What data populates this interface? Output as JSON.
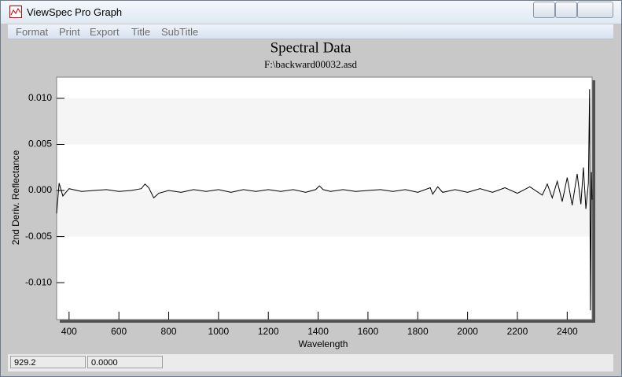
{
  "window": {
    "title": "ViewSpec Pro Graph",
    "menu": [
      "Format",
      "Print",
      "Export",
      "Title",
      "SubTitle"
    ],
    "status": [
      "929.2",
      "0.0000"
    ]
  },
  "chart_data": {
    "type": "line",
    "title": "Spectral Data",
    "subtitle": "F:\\backward00032.asd",
    "x_label": "Wavelength",
    "y_label": "2nd Deriv. Reflectance",
    "x": [
      350,
      360,
      375,
      400,
      450,
      500,
      550,
      600,
      650,
      690,
      705,
      720,
      740,
      760,
      800,
      850,
      900,
      950,
      1000,
      1050,
      1100,
      1150,
      1200,
      1250,
      1300,
      1350,
      1390,
      1405,
      1420,
      1450,
      1500,
      1550,
      1600,
      1650,
      1700,
      1750,
      1800,
      1850,
      1860,
      1880,
      1900,
      1950,
      2000,
      2050,
      2100,
      2150,
      2200,
      2250,
      2300,
      2320,
      2340,
      2360,
      2380,
      2400,
      2420,
      2440,
      2455,
      2465,
      2475,
      2485,
      2490,
      2493,
      2497,
      2500
    ],
    "series": [
      {
        "name": "backward00032",
        "color": "#000000",
        "values": [
          -0.0025,
          0.0008,
          -0.0006,
          0.0002,
          -0.0001,
          0.0,
          0.0001,
          -0.0001,
          0.0,
          0.0002,
          0.0007,
          0.0003,
          -0.0008,
          -0.0003,
          0.0,
          -0.0002,
          0.0001,
          -0.0001,
          0.0001,
          -0.0002,
          0.0001,
          -0.0001,
          0.0001,
          -0.0001,
          0.0001,
          -0.0002,
          0.0001,
          0.0005,
          0.0001,
          -0.0001,
          0.0001,
          -0.0001,
          0.0,
          0.0001,
          -0.0001,
          0.0001,
          -0.0002,
          0.0003,
          -0.0004,
          0.0004,
          -0.0002,
          0.0001,
          -0.0002,
          0.0002,
          -0.0002,
          0.0003,
          -0.0003,
          0.0004,
          -0.0005,
          0.0007,
          -0.0008,
          0.001,
          -0.0012,
          0.0014,
          -0.0016,
          0.0018,
          -0.0015,
          0.0025,
          -0.002,
          0.0008,
          0.011,
          -0.013,
          0.002,
          -0.001
        ]
      }
    ],
    "xlim": [
      350,
      2500
    ],
    "xticks": [
      400,
      600,
      800,
      1000,
      1200,
      1400,
      1600,
      1800,
      2000,
      2200,
      2400
    ],
    "ylim": [
      -0.014,
      0.0123
    ],
    "yticks": [
      {
        "value": 0.01,
        "label": "0.010"
      },
      {
        "value": 0.005,
        "label": "0.005"
      },
      {
        "value": 0,
        "label": "0.000"
      },
      {
        "value": -0.005,
        "label": "-0.005"
      },
      {
        "value": -0.01,
        "label": "-0.010"
      }
    ],
    "grid": true
  }
}
